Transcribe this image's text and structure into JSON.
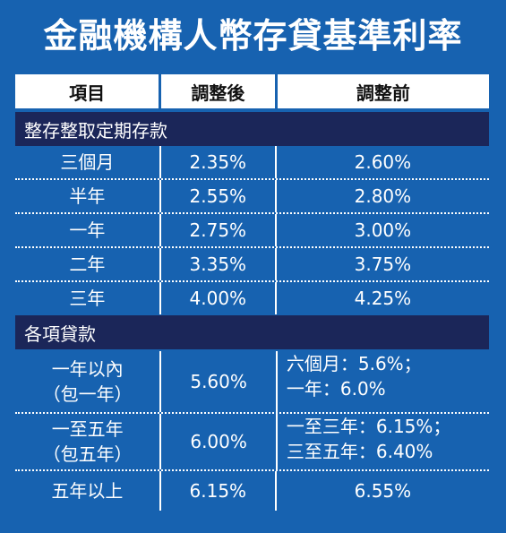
{
  "title": "金融機構人幣存貸基準利率",
  "header": {
    "item": "項目",
    "after": "調整後",
    "before": "調整前"
  },
  "sections": {
    "deposits": "整存整取定期存款",
    "loans": "各項貸款"
  },
  "deposit_rows": [
    {
      "item": "三個月",
      "after": "2.35%",
      "before": "2.60%"
    },
    {
      "item": "半年",
      "after": "2.55%",
      "before": "2.80%"
    },
    {
      "item": "一年",
      "after": "2.75%",
      "before": "3.00%"
    },
    {
      "item": "二年",
      "after": "3.35%",
      "before": "3.75%"
    },
    {
      "item": "三年",
      "after": "4.00%",
      "before": "4.25%"
    }
  ],
  "loan_rows": [
    {
      "item_l1": "一年以內",
      "item_l2": "（包一年）",
      "after": "5.60%",
      "before_l1": "六個月：5.6%；",
      "before_l2": "一年：6.0%"
    },
    {
      "item_l1": "一至五年",
      "item_l2": "（包五年）",
      "after": "6.00%",
      "before_l1": "一至三年：6.15%；",
      "before_l2": "三至五年：6.40%"
    },
    {
      "item": "五年以上",
      "after": "6.15%",
      "before": "6.55%"
    }
  ]
}
